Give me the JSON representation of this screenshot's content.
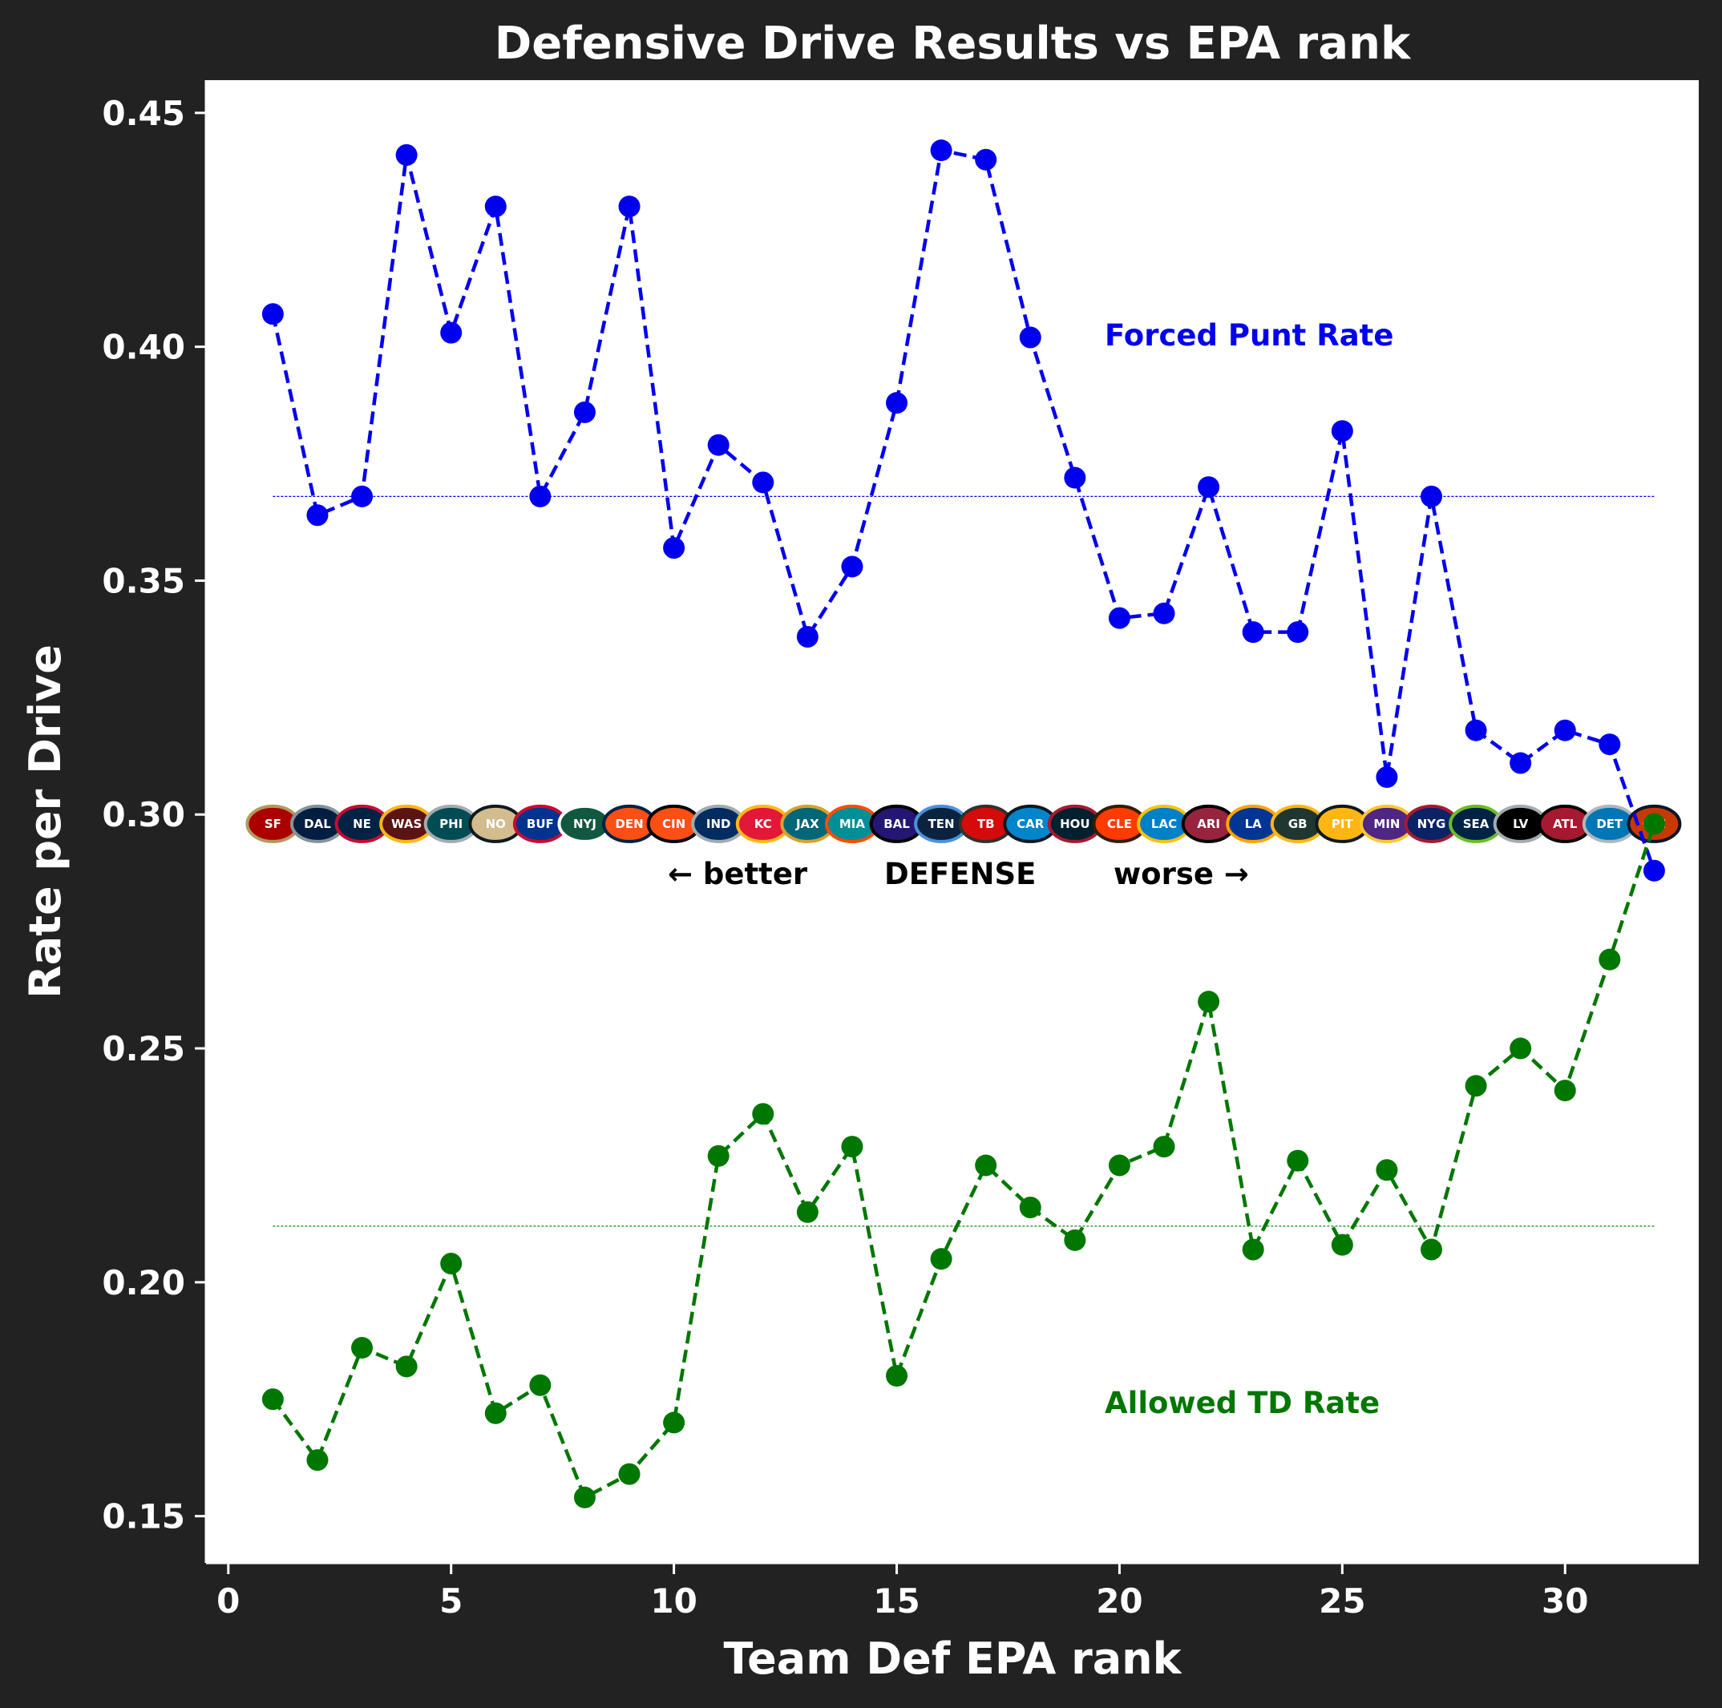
{
  "chart_data": {
    "type": "line",
    "title": "Defensive Drive Results vs EPA rank",
    "xlabel": "Team Def EPA rank",
    "ylabel": "Rate per Drive",
    "xlim": [
      -0.5,
      33.0
    ],
    "ylim": [
      0.14,
      0.457
    ],
    "xticks": [
      "0",
      "5",
      "10",
      "15",
      "20",
      "25",
      "30"
    ],
    "yticks": [
      "0.15",
      "0.20",
      "0.25",
      "0.30",
      "0.35",
      "0.40",
      "0.45"
    ],
    "grid": false,
    "x": [
      1,
      2,
      3,
      4,
      5,
      6,
      7,
      8,
      9,
      10,
      11,
      12,
      13,
      14,
      15,
      16,
      17,
      18,
      19,
      20,
      21,
      22,
      23,
      24,
      25,
      26,
      27,
      28,
      29,
      30,
      31,
      32
    ],
    "series": [
      {
        "name": "Forced Punt Rate",
        "color": "#0000ee",
        "mean": 0.368,
        "values": [
          0.407,
          0.364,
          0.368,
          0.441,
          0.403,
          0.43,
          0.368,
          0.386,
          0.43,
          0.357,
          0.379,
          0.371,
          0.338,
          0.353,
          0.388,
          0.442,
          0.44,
          0.402,
          0.372,
          0.342,
          0.343,
          0.37,
          0.339,
          0.339,
          0.382,
          0.308,
          0.368,
          0.318,
          0.311,
          0.318,
          0.315,
          0.288
        ]
      },
      {
        "name": "Allowed TD Rate",
        "color": "#007700",
        "mean": 0.212,
        "values": [
          0.175,
          0.162,
          0.186,
          0.182,
          0.204,
          0.172,
          0.178,
          0.154,
          0.159,
          0.17,
          0.227,
          0.236,
          0.215,
          0.229,
          0.18,
          0.205,
          0.225,
          0.216,
          0.209,
          0.225,
          0.229,
          0.26,
          0.207,
          0.226,
          0.208,
          0.224,
          0.207,
          0.242,
          0.25,
          0.241,
          0.269,
          0.298
        ]
      }
    ],
    "team_logos": [
      {
        "team": "SF",
        "primary": "#aa0000",
        "secondary": "#b3995d"
      },
      {
        "team": "DAL",
        "primary": "#041e42",
        "secondary": "#869397"
      },
      {
        "team": "NE",
        "primary": "#002244",
        "secondary": "#c60c30"
      },
      {
        "team": "WAS",
        "primary": "#5a1414",
        "secondary": "#ffb612"
      },
      {
        "team": "PHI",
        "primary": "#004c54",
        "secondary": "#a5acaf"
      },
      {
        "team": "NO",
        "primary": "#d3bc8d",
        "secondary": "#101820"
      },
      {
        "team": "BUF",
        "primary": "#00338d",
        "secondary": "#c60c30"
      },
      {
        "team": "NYJ",
        "primary": "#125740",
        "secondary": "#ffffff"
      },
      {
        "team": "DEN",
        "primary": "#fb4f14",
        "secondary": "#002244"
      },
      {
        "team": "CIN",
        "primary": "#fb4f14",
        "secondary": "#000000"
      },
      {
        "team": "IND",
        "primary": "#002c5f",
        "secondary": "#a2aaad"
      },
      {
        "team": "KC",
        "primary": "#e31837",
        "secondary": "#ffb81c"
      },
      {
        "team": "JAX",
        "primary": "#006778",
        "secondary": "#d7a22a"
      },
      {
        "team": "MIA",
        "primary": "#008e97",
        "secondary": "#fc4c02"
      },
      {
        "team": "BAL",
        "primary": "#241773",
        "secondary": "#000000"
      },
      {
        "team": "TEN",
        "primary": "#0c2340",
        "secondary": "#4b92db"
      },
      {
        "team": "TB",
        "primary": "#d50a0a",
        "secondary": "#34302b"
      },
      {
        "team": "CAR",
        "primary": "#0085ca",
        "secondary": "#101820"
      },
      {
        "team": "HOU",
        "primary": "#03202f",
        "secondary": "#a71930"
      },
      {
        "team": "CLE",
        "primary": "#ff3c00",
        "secondary": "#311d00"
      },
      {
        "team": "LAC",
        "primary": "#0080c6",
        "secondary": "#ffc20e"
      },
      {
        "team": "ARI",
        "primary": "#97233f",
        "secondary": "#000000"
      },
      {
        "team": "LA",
        "primary": "#003594",
        "secondary": "#ffa300"
      },
      {
        "team": "GB",
        "primary": "#203731",
        "secondary": "#ffb612"
      },
      {
        "team": "PIT",
        "primary": "#ffb612",
        "secondary": "#101820"
      },
      {
        "team": "MIN",
        "primary": "#4f2683",
        "secondary": "#ffc62f"
      },
      {
        "team": "NYG",
        "primary": "#0b2265",
        "secondary": "#a71930"
      },
      {
        "team": "SEA",
        "primary": "#002244",
        "secondary": "#69be28"
      },
      {
        "team": "LV",
        "primary": "#000000",
        "secondary": "#a5acaf"
      },
      {
        "team": "ATL",
        "primary": "#a71930",
        "secondary": "#000000"
      },
      {
        "team": "DET",
        "primary": "#0076b6",
        "secondary": "#b0b7bc"
      },
      {
        "team": "CHI",
        "primary": "#c83803",
        "secondary": "#0b162a"
      }
    ]
  },
  "annotations": {
    "punt_label": "Forced Punt Rate",
    "td_label": "Allowed TD Rate",
    "better": "← better",
    "defense": "DEFENSE",
    "worse": "worse →"
  }
}
